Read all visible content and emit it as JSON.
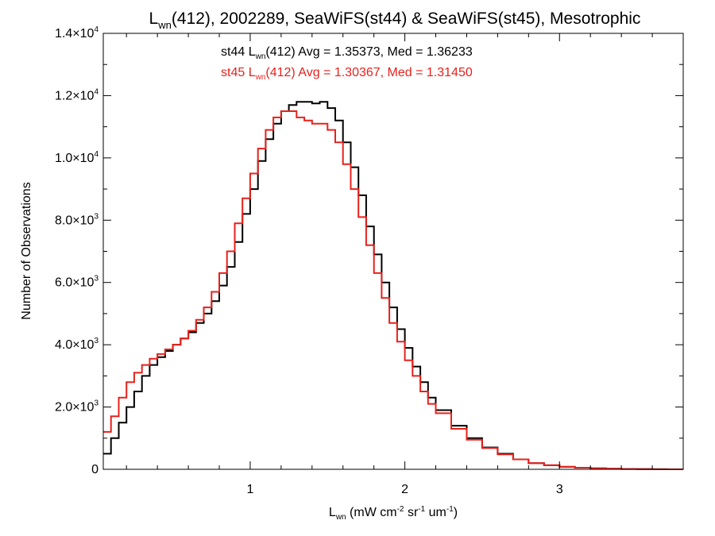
{
  "chart_data": {
    "type": "line",
    "title": {
      "main": "L",
      "sub": "wn",
      "rest": "(412), 2002289, SeaWiFS(st44) & SeaWiFS(st45), Mesotrophic"
    },
    "xlabel": {
      "main": "L",
      "sub": "wn",
      "rest": " (mW cm",
      "sup1": "-2",
      "mid": " sr",
      "sup2": "-1",
      "end": " um",
      "sup3": "-1",
      "close": ")"
    },
    "ylabel": "Number of Observations",
    "xlim": [
      0.05,
      3.8
    ],
    "ylim": [
      0,
      14000
    ],
    "x_ticks": [
      {
        "value": 1,
        "label": "1"
      },
      {
        "value": 2,
        "label": "2"
      },
      {
        "value": 3,
        "label": "3"
      }
    ],
    "y_ticks": [
      {
        "value": 0,
        "mant": "0",
        "exp": ""
      },
      {
        "value": 2000,
        "mant": "2.0×10",
        "exp": "3"
      },
      {
        "value": 4000,
        "mant": "4.0×10",
        "exp": "3"
      },
      {
        "value": 6000,
        "mant": "6.0×10",
        "exp": "3"
      },
      {
        "value": 8000,
        "mant": "8.0×10",
        "exp": "3"
      },
      {
        "value": 10000,
        "mant": "1.0×10",
        "exp": "4"
      },
      {
        "value": 12000,
        "mant": "1.2×10",
        "exp": "4"
      },
      {
        "value": 14000,
        "mant": "1.4×10",
        "exp": "4"
      }
    ],
    "grid": false,
    "annotations": [
      {
        "color": "#000000",
        "pre": "st44 L",
        "sub": "wn",
        "post": "(412) Avg = 1.35373, Med = 1.36233"
      },
      {
        "color": "#e8211b",
        "pre": "st45 L",
        "sub": "wn",
        "post": "(412) Avg = 1.30367, Med = 1.31450"
      }
    ],
    "series": [
      {
        "color": "#000000",
        "x": [
          0.05,
          0.1,
          0.15,
          0.2,
          0.25,
          0.3,
          0.35,
          0.4,
          0.45,
          0.5,
          0.55,
          0.6,
          0.65,
          0.7,
          0.75,
          0.8,
          0.85,
          0.9,
          0.95,
          1.0,
          1.05,
          1.1,
          1.15,
          1.2,
          1.25,
          1.3,
          1.35,
          1.4,
          1.45,
          1.5,
          1.55,
          1.6,
          1.65,
          1.7,
          1.75,
          1.8,
          1.85,
          1.9,
          1.95,
          2.0,
          2.05,
          2.1,
          2.15,
          2.2,
          2.3,
          2.4,
          2.5,
          2.6,
          2.7,
          2.8,
          2.9,
          3.0,
          3.1,
          3.2,
          3.3,
          3.4,
          3.5,
          3.6,
          3.7,
          3.8
        ],
        "values": [
          500,
          1000,
          1500,
          2000,
          2500,
          3000,
          3350,
          3600,
          3800,
          4000,
          4200,
          4400,
          4700,
          5000,
          5400,
          5900,
          6500,
          7300,
          8200,
          9000,
          9900,
          10600,
          11100,
          11500,
          11700,
          11800,
          11800,
          11750,
          11800,
          11600,
          11200,
          10500,
          9700,
          8800,
          7800,
          6900,
          6000,
          5200,
          4500,
          3900,
          3300,
          2800,
          2300,
          1900,
          1400,
          1000,
          700,
          500,
          320,
          200,
          130,
          80,
          50,
          30,
          18,
          10,
          6,
          3,
          1,
          0
        ]
      },
      {
        "color": "#e8211b",
        "x": [
          0.05,
          0.1,
          0.15,
          0.2,
          0.25,
          0.3,
          0.35,
          0.4,
          0.45,
          0.5,
          0.55,
          0.6,
          0.65,
          0.7,
          0.75,
          0.8,
          0.85,
          0.9,
          0.95,
          1.0,
          1.05,
          1.1,
          1.15,
          1.2,
          1.25,
          1.3,
          1.35,
          1.4,
          1.45,
          1.5,
          1.55,
          1.6,
          1.65,
          1.7,
          1.75,
          1.8,
          1.85,
          1.9,
          1.95,
          2.0,
          2.05,
          2.1,
          2.15,
          2.2,
          2.3,
          2.4,
          2.5,
          2.6,
          2.7,
          2.8,
          2.9,
          3.0,
          3.1,
          3.2,
          3.3,
          3.4,
          3.5,
          3.6,
          3.7,
          3.8
        ],
        "values": [
          1200,
          1700,
          2300,
          2800,
          3100,
          3350,
          3550,
          3700,
          3850,
          4000,
          4200,
          4450,
          4800,
          5200,
          5700,
          6300,
          7000,
          7900,
          8700,
          9500,
          10300,
          10900,
          11300,
          11500,
          11500,
          11300,
          11200,
          11100,
          11100,
          10900,
          10500,
          9800,
          9000,
          8100,
          7200,
          6300,
          5500,
          4700,
          4100,
          3500,
          3000,
          2500,
          2100,
          1800,
          1300,
          950,
          680,
          480,
          320,
          200,
          130,
          80,
          50,
          30,
          18,
          10,
          6,
          3,
          1,
          0
        ]
      }
    ]
  }
}
